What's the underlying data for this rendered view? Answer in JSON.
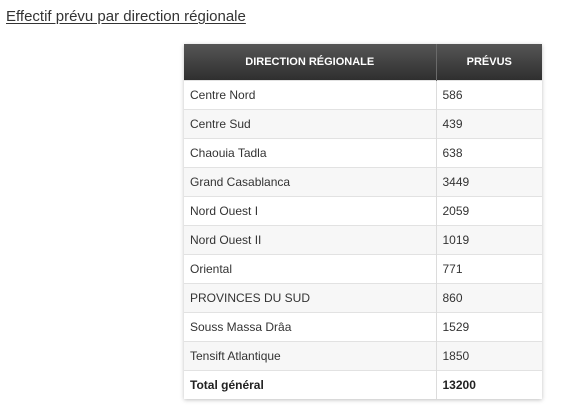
{
  "heading": "Effectif prévu par direction régionale",
  "table": {
    "headers": [
      "DIRECTION RÉGIONALE",
      "PRÉVUS"
    ],
    "rows": [
      {
        "direction": "Centre Nord",
        "prevus": "586"
      },
      {
        "direction": "Centre Sud",
        "prevus": "439"
      },
      {
        "direction": "Chaouia Tadla",
        "prevus": "638"
      },
      {
        "direction": "Grand Casablanca",
        "prevus": "3449"
      },
      {
        "direction": "Nord Ouest I",
        "prevus": "2059"
      },
      {
        "direction": "Nord Ouest II",
        "prevus": "1019"
      },
      {
        "direction": "Oriental",
        "prevus": "771"
      },
      {
        "direction": "PROVINCES DU SUD",
        "prevus": "860"
      },
      {
        "direction": "Souss Massa Drâa",
        "prevus": "1529"
      },
      {
        "direction": "Tensift Atlantique",
        "prevus": "1850"
      }
    ],
    "total": {
      "direction": "Total général",
      "prevus": "13200"
    }
  }
}
